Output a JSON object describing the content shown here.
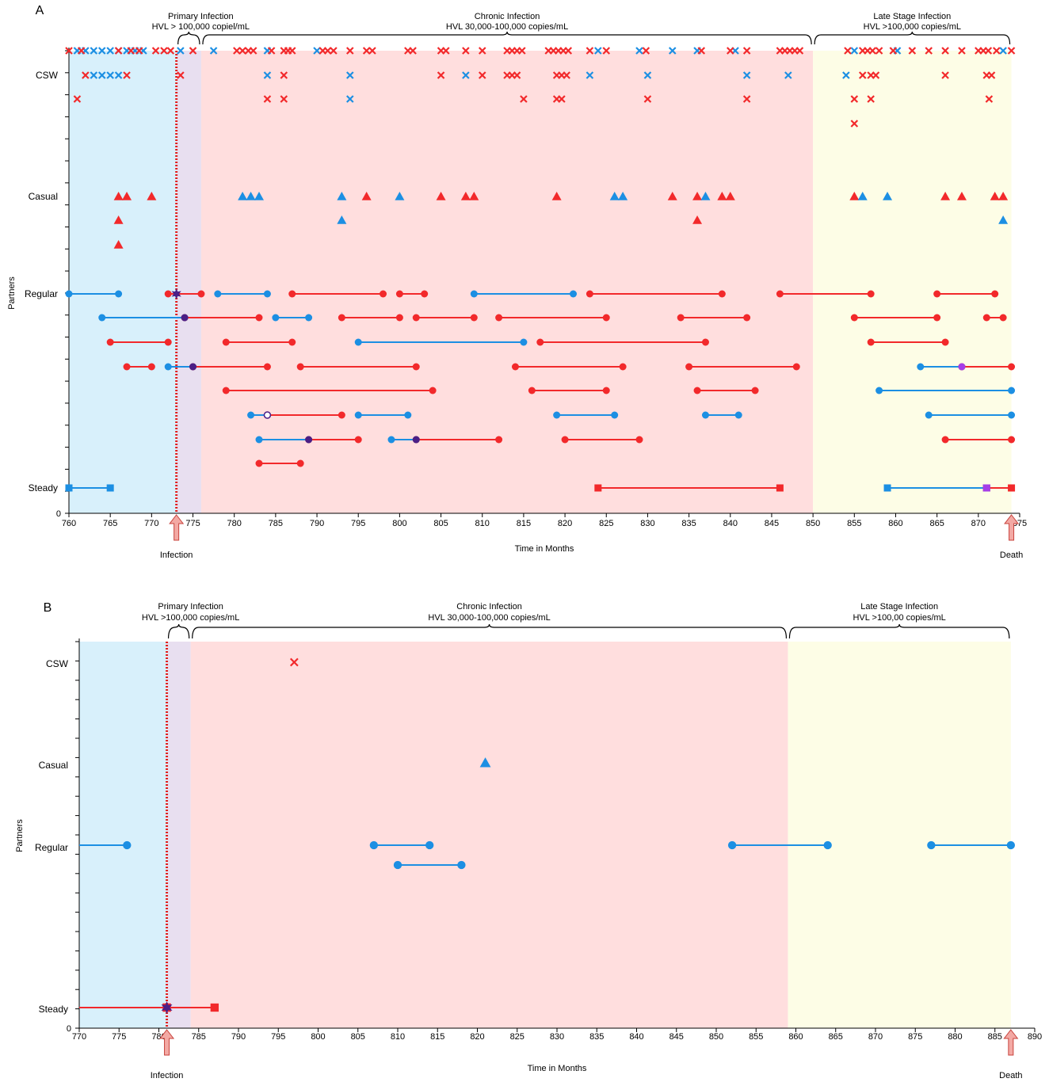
{
  "colors": {
    "red": "#f2292b",
    "blue": "#1c8fe3",
    "purple_mark": "#4b1f86",
    "violet_mark": "#a53ee8",
    "pre_infection_bg": "#d8f0fb",
    "primary_bg": "#e8dff0",
    "chronic_bg": "#ffdede",
    "late_bg": "#fdfde6",
    "infection_line": "#e0201e",
    "arrow_fill": "#f3a9a4",
    "arrow_stroke": "#c8433d"
  },
  "chart_data": [
    {
      "type": "scatter",
      "panel_label": "A",
      "xlabel": "Time in Months",
      "ylabel": "Partners",
      "xlim": [
        760,
        875
      ],
      "x_ticks": [
        760,
        765,
        770,
        775,
        780,
        785,
        790,
        795,
        800,
        805,
        810,
        815,
        820,
        825,
        830,
        835,
        840,
        845,
        850,
        855,
        860,
        865,
        870,
        875
      ],
      "y_zero_label": "0",
      "y_category_labels": [
        "CSW",
        "Casual",
        "Regular",
        "Steady"
      ],
      "infection_month": 773,
      "death_month": 874,
      "infection_label": "Infection",
      "death_label": "Death",
      "phases": [
        {
          "name_line1": "Primary Infection",
          "name_line2": "HVL > 100,000 copiel/mL",
          "start": 773,
          "end": 776
        },
        {
          "name_line1": "Chronic Infection",
          "name_line2": "HVL 30,000-100,000 copies/mL",
          "start": 776,
          "end": 850
        },
        {
          "name_line1": "Late Stage Infection",
          "name_line2": "HVL >100,000 copies/mL",
          "start": 850,
          "end": 874
        }
      ],
      "csw": [
        {
          "row": 0,
          "red": [
            760,
            761.5,
            766,
            767.5,
            768.5,
            770.5,
            771.5,
            772.3,
            775,
            780.3,
            781,
            781.7,
            782.3,
            784.5,
            786,
            786.5,
            787,
            790.7,
            791.3,
            792,
            794,
            796,
            796.7,
            801,
            801.6,
            805,
            805.6,
            808,
            810,
            813,
            813.6,
            814.2,
            814.8,
            818,
            818.6,
            819.2,
            819.8,
            820.4,
            823,
            825,
            829.8,
            836.5,
            840,
            842,
            846,
            846.6,
            847.2,
            847.8,
            848.4,
            854.2,
            856,
            856.6,
            857.2,
            858,
            859.7,
            862,
            864,
            866,
            868,
            870,
            870.6,
            871.2,
            872.2,
            874
          ],
          "blue": [
            761,
            762,
            763,
            764,
            765,
            766,
            767,
            768,
            769,
            773.5,
            777.5,
            784,
            790,
            824,
            829,
            833,
            836,
            840.6,
            855,
            860.2,
            873
          ]
        },
        {
          "row": 1,
          "red": [
            762,
            767,
            773.5,
            786,
            805,
            810,
            813,
            813.6,
            814.2,
            819,
            819.6,
            820.2,
            866,
            871,
            871.6,
            856,
            857,
            857.6
          ],
          "blue": [
            763,
            764,
            765,
            766,
            784,
            794,
            808,
            823,
            830,
            842,
            847,
            854
          ]
        },
        {
          "row": 2,
          "red": [
            761,
            784,
            786,
            815,
            819,
            819.6,
            830,
            842,
            855,
            857,
            871.3
          ],
          "blue": [
            794
          ]
        },
        {
          "row": 3,
          "red": [
            855
          ],
          "blue": []
        }
      ],
      "casual": [
        {
          "row": 0,
          "red": [
            766,
            767,
            770,
            796,
            805,
            808,
            809,
            819,
            833,
            836,
            839,
            840,
            855,
            866,
            868,
            872,
            873
          ],
          "blue": [
            781,
            782,
            783,
            793,
            800,
            826,
            827,
            837,
            856,
            859
          ]
        },
        {
          "row": 1,
          "red": [
            766,
            836
          ],
          "blue": [
            793,
            873
          ]
        },
        {
          "row": 2,
          "red": [
            766
          ],
          "blue": []
        }
      ],
      "regular": [
        {
          "row": 0,
          "segments": [
            [
              760,
              766,
              "blue"
            ],
            [
              772,
              776,
              "red"
            ],
            [
              778,
              784,
              "blue"
            ],
            [
              787,
              798,
              "red"
            ],
            [
              800,
              803,
              "red"
            ],
            [
              809,
              821,
              "blue"
            ],
            [
              823,
              839,
              "red"
            ],
            [
              846,
              857,
              "red"
            ],
            [
              865,
              872,
              "red"
            ]
          ],
          "marks": [
            [
              773,
              "star"
            ]
          ]
        },
        {
          "row": 1,
          "segments": [
            [
              764,
              774,
              "blue"
            ],
            [
              774,
              783,
              "red"
            ],
            [
              785,
              789,
              "blue"
            ],
            [
              793,
              800,
              "red"
            ],
            [
              802,
              809,
              "red"
            ],
            [
              812,
              825,
              "red"
            ],
            [
              834,
              842,
              "red"
            ],
            [
              855,
              865,
              "red"
            ],
            [
              871,
              873,
              "red"
            ]
          ],
          "marks": [
            [
              774,
              "purple"
            ]
          ]
        },
        {
          "row": 2,
          "segments": [
            [
              765,
              772,
              "red"
            ],
            [
              779,
              787,
              "red"
            ],
            [
              795,
              815,
              "blue"
            ],
            [
              817,
              837,
              "red"
            ],
            [
              857,
              866,
              "red"
            ]
          ],
          "marks": []
        },
        {
          "row": 3,
          "segments": [
            [
              767,
              770,
              "red"
            ],
            [
              772,
              775,
              "blue"
            ],
            [
              775,
              784,
              "red"
            ],
            [
              788,
              802,
              "red"
            ],
            [
              814,
              827,
              "red"
            ],
            [
              835,
              848,
              "red"
            ],
            [
              863,
              868,
              "blue"
            ],
            [
              868,
              874,
              "red"
            ]
          ],
          "marks": [
            [
              775,
              "purple"
            ],
            [
              868,
              "violet"
            ]
          ]
        },
        {
          "row": 4,
          "segments": [
            [
              779,
              804,
              "red"
            ],
            [
              816,
              825,
              "red"
            ],
            [
              836,
              843,
              "red"
            ],
            [
              858,
              874,
              "blue"
            ]
          ],
          "marks": []
        },
        {
          "row": 5,
          "segments": [
            [
              782,
              784,
              "blue"
            ],
            [
              784,
              793,
              "red"
            ],
            [
              795,
              801,
              "blue"
            ],
            [
              819,
              826,
              "blue"
            ],
            [
              837,
              841,
              "blue"
            ],
            [
              864,
              874,
              "blue"
            ]
          ],
          "marks": [
            [
              784,
              "open"
            ]
          ]
        },
        {
          "row": 6,
          "segments": [
            [
              783,
              789,
              "blue"
            ],
            [
              789,
              795,
              "red"
            ],
            [
              799,
              802,
              "blue"
            ],
            [
              802,
              812,
              "red"
            ],
            [
              820,
              829,
              "red"
            ],
            [
              866,
              874,
              "red"
            ]
          ],
          "marks": [
            [
              789,
              "purple"
            ],
            [
              802,
              "purple"
            ]
          ]
        },
        {
          "row": 7,
          "segments": [
            [
              783,
              788,
              "red"
            ]
          ],
          "marks": []
        }
      ],
      "steady": [
        {
          "row": 0,
          "segments": [
            [
              760,
              765,
              "blue"
            ],
            [
              824,
              846,
              "red"
            ],
            [
              859,
              871,
              "blue"
            ],
            [
              871,
              874,
              "red"
            ]
          ],
          "marks": [
            [
              871,
              "violet"
            ]
          ]
        }
      ]
    },
    {
      "type": "scatter",
      "panel_label": "B",
      "xlabel": "Time in Months",
      "ylabel": "Partners",
      "xlim": [
        770,
        890
      ],
      "x_ticks": [
        770,
        775,
        780,
        785,
        790,
        795,
        800,
        805,
        810,
        815,
        820,
        825,
        830,
        835,
        840,
        845,
        850,
        855,
        860,
        865,
        870,
        875,
        880,
        885,
        890
      ],
      "y_zero_label": "0",
      "y_category_labels": [
        "CSW",
        "Casual",
        "Regular",
        "Steady"
      ],
      "infection_month": 781,
      "death_month": 887,
      "infection_label": "Infection",
      "death_label": "Death",
      "phases": [
        {
          "name_line1": "Primary Infection",
          "name_line2": "HVL >100,000 copies/mL",
          "start": 781,
          "end": 784
        },
        {
          "name_line1": "Chronic Infection",
          "name_line2": "HVL 30,000-100,000 copies/mL",
          "start": 784,
          "end": 859
        },
        {
          "name_line1": "Late Stage Infection",
          "name_line2": "HVL >100,00 copies/mL",
          "start": 859,
          "end": 887
        }
      ],
      "csw": [
        {
          "row": 0,
          "red": [
            797
          ],
          "blue": []
        }
      ],
      "casual": [
        {
          "row": 0,
          "red": [],
          "blue": [
            821
          ]
        }
      ],
      "regular": [
        {
          "row": 0,
          "segments": [
            [
              770,
              776,
              "blue"
            ],
            [
              807,
              814,
              "blue"
            ],
            [
              852,
              864,
              "blue"
            ],
            [
              877,
              887,
              "blue"
            ]
          ],
          "marks": []
        },
        {
          "row": 1,
          "segments": [
            [
              810,
              818,
              "blue"
            ]
          ],
          "marks": []
        }
      ],
      "steady": [
        {
          "row": 0,
          "segments": [
            [
              770,
              781,
              "red"
            ],
            [
              781,
              787,
              "red"
            ]
          ],
          "marks": [
            [
              781,
              "star"
            ]
          ]
        }
      ]
    }
  ]
}
